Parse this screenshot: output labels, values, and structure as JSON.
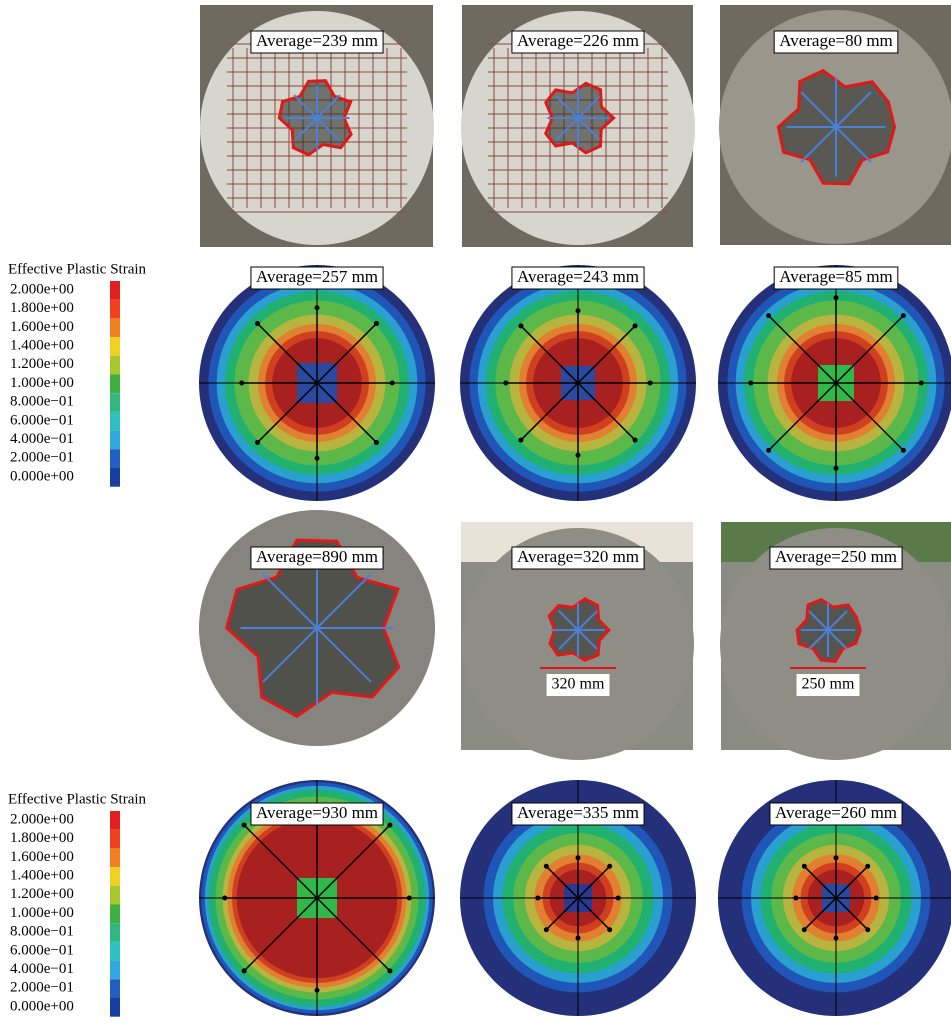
{
  "legends": [
    {
      "title": "Effective Plastic Strain",
      "labels": [
        "2.000e+00",
        "1.800e+00",
        "1.600e+00",
        "1.400e+00",
        "1.200e+00",
        "1.000e+00",
        "8.000e−01",
        "6.000e−01",
        "4.000e−01",
        "2.000e−01",
        "0.000e+00"
      ]
    },
    {
      "title": "Effective Plastic Strain",
      "labels": [
        "2.000e+00",
        "1.800e+00",
        "1.600e+00",
        "1.400e+00",
        "1.200e+00",
        "1.000e+00",
        "8.000e−01",
        "6.000e−01",
        "4.000e−01",
        "2.000e−01",
        "0.000e+00"
      ]
    }
  ],
  "rows": [
    {
      "panels": [
        {
          "label": "Average=239 mm"
        },
        {
          "label": "Average=226 mm"
        },
        {
          "label": "Average=80 mm"
        }
      ]
    },
    {
      "panels": [
        {
          "label": "Average=257 mm"
        },
        {
          "label": "Average=243 mm"
        },
        {
          "label": "Average=85 mm"
        }
      ]
    },
    {
      "panels": [
        {
          "label": "Average=890 mm"
        },
        {
          "label": "Average=320 mm",
          "scale_label": "320 mm"
        },
        {
          "label": "Average=250 mm",
          "scale_label": "250 mm"
        }
      ]
    },
    {
      "panels": [
        {
          "label": "Average=930 mm"
        },
        {
          "label": "Average=335 mm"
        },
        {
          "label": "Average=260 mm"
        }
      ]
    }
  ]
}
